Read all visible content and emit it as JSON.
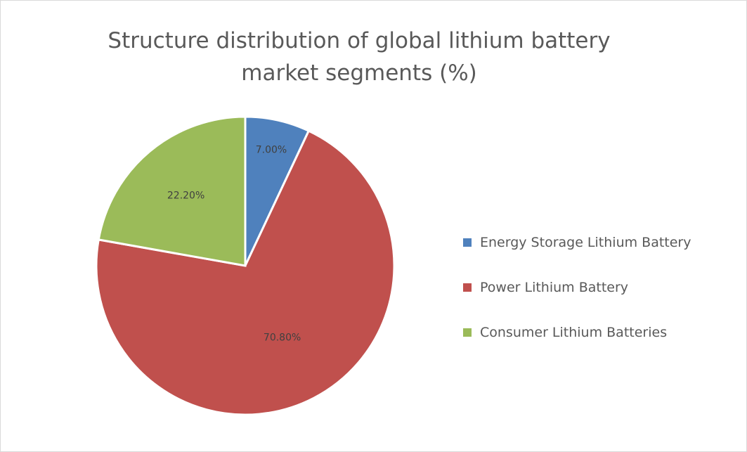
{
  "chart_data": {
    "type": "pie",
    "title_lines": [
      "Structure distribution of global lithium battery",
      "market segments (%)"
    ],
    "categories": [
      "Energy Storage Lithium Battery",
      "Power Lithium Battery",
      "Consumer Lithium Batteries"
    ],
    "values": [
      7.0,
      70.8,
      22.2
    ],
    "data_labels": [
      "7.00%",
      "70.80%",
      "22.20%"
    ],
    "colors": [
      "#4f81bd",
      "#c0504d",
      "#9bbb59"
    ],
    "legend_position": "right",
    "start_angle": "top, clockwise"
  }
}
